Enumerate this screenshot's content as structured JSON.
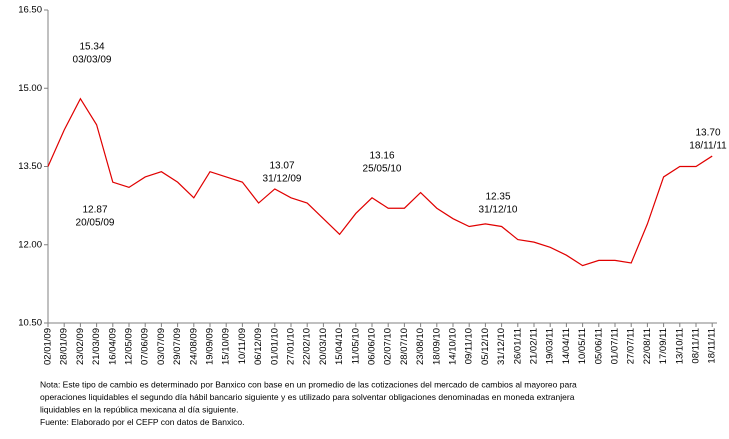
{
  "chart_data": {
    "type": "line",
    "categories": [
      "02/01/09",
      "28/01/09",
      "23/02/09",
      "21/03/09",
      "16/04/09",
      "12/05/09",
      "07/06/09",
      "03/07/09",
      "29/07/09",
      "24/08/09",
      "19/09/09",
      "15/10/09",
      "10/11/09",
      "06/12/09",
      "01/01/10",
      "27/01/10",
      "22/02/10",
      "20/03/10",
      "15/04/10",
      "11/05/10",
      "06/06/10",
      "02/07/10",
      "28/07/10",
      "23/08/10",
      "18/09/10",
      "14/10/10",
      "09/11/10",
      "05/12/10",
      "31/12/10",
      "26/01/11",
      "21/02/11",
      "19/03/11",
      "14/04/11",
      "10/05/11",
      "05/06/11",
      "01/07/11",
      "27/07/11",
      "22/08/11",
      "17/09/11",
      "13/10/11",
      "08/11/11",
      "18/11/11"
    ],
    "values": [
      13.5,
      14.2,
      14.8,
      14.3,
      13.2,
      13.1,
      13.3,
      13.4,
      13.2,
      12.9,
      13.4,
      13.3,
      13.2,
      12.8,
      13.07,
      12.9,
      12.8,
      12.5,
      12.2,
      12.6,
      12.9,
      12.7,
      12.7,
      13.0,
      12.7,
      12.5,
      12.35,
      12.4,
      12.35,
      12.1,
      12.05,
      11.95,
      11.8,
      11.6,
      11.7,
      11.7,
      11.65,
      12.4,
      13.3,
      13.5,
      13.5,
      13.7
    ],
    "color": "#e00000",
    "ylim": [
      10.5,
      16.5
    ],
    "yticks": [
      {
        "value": 10.5,
        "label": "10.50"
      },
      {
        "value": 12,
        "label": "12.00"
      },
      {
        "value": 13.5,
        "label": "13.50"
      },
      {
        "value": 15,
        "label": "15.00"
      },
      {
        "value": 16.5,
        "label": "16.50"
      }
    ],
    "annotations": [
      {
        "value": "15.34",
        "date": "03/03/09"
      },
      {
        "value": "12.87",
        "date": "20/05/09"
      },
      {
        "value": "13.07",
        "date": "31/12/09"
      },
      {
        "value": "13.16",
        "date": "25/05/10"
      },
      {
        "value": "12.35",
        "date": "31/12/10"
      },
      {
        "value": "13.70",
        "date": "18/11/11"
      }
    ],
    "notes": [
      "Nota: Este tipo de cambio es determinado por Banxico con base en un promedio de las cotizaciones del mercado de cambios al mayoreo para",
      "operaciones liquidables el segundo día hábil bancario siguiente y es utilizado para solventar obligaciones denominadas en moneda extranjera",
      "liquidables en la república mexicana al día siguiente.",
      "Fuente: Elaborado por el CEFP con datos de Banxico."
    ]
  }
}
